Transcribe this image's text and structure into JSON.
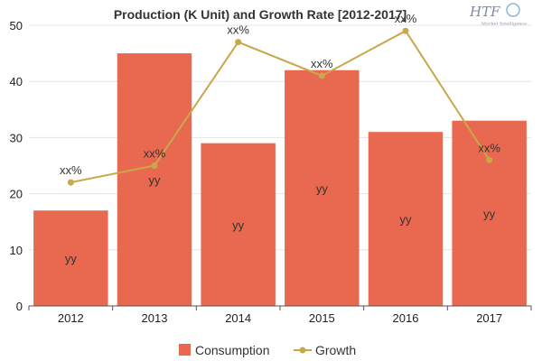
{
  "chart_data": {
    "type": "bar",
    "title": "Production (K Unit) and Growth Rate [2012-2017]",
    "categories": [
      "2012",
      "2013",
      "2014",
      "2015",
      "2016",
      "2017"
    ],
    "ylim": [
      0,
      50
    ],
    "yticks": [
      0,
      10,
      20,
      30,
      40,
      50
    ],
    "grid": true,
    "legend_position": "bottom",
    "series": [
      {
        "name": "Consumption",
        "type": "bar",
        "color": "#e8694f",
        "values": [
          17,
          45,
          29,
          42,
          31,
          33
        ],
        "data_labels": [
          "yy",
          "yy",
          "yy",
          "yy",
          "yy",
          "yy"
        ]
      },
      {
        "name": "Growth",
        "type": "line",
        "color": "#c9a84a",
        "values": [
          22,
          25,
          47,
          41,
          49,
          26
        ],
        "data_labels": [
          "xx%",
          "xx%",
          "xx%",
          "xx%",
          "xx%",
          "xx%"
        ]
      }
    ]
  },
  "logo": {
    "brand": "HTF",
    "tagline": "Market Intelligence"
  }
}
